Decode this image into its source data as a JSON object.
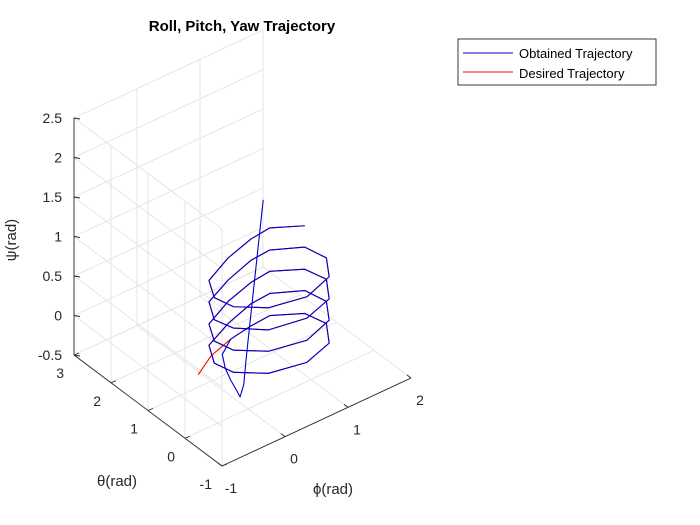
{
  "chart_data": {
    "type": "line3d",
    "title": "Roll, Pitch, Yaw Trajectory",
    "xlabel": "ϕ(rad)",
    "ylabel": "θ(rad)",
    "zlabel": "ψ(rad)",
    "xlim": [
      -1,
      2
    ],
    "ylim": [
      -1,
      3
    ],
    "zlim": [
      -0.5,
      2.5
    ],
    "xticks": [
      "-1",
      "0",
      "1",
      "2"
    ],
    "yticks": [
      "-1",
      "0",
      "1",
      "2",
      "3"
    ],
    "zticks": [
      "-0.5",
      "0",
      "0.5",
      "1",
      "1.5",
      "2",
      "2.5"
    ],
    "grid": true,
    "legend": "outside-top-right",
    "colors": {
      "obtained": "#0000cc",
      "desired": "#ff0000"
    },
    "series": [
      {
        "name": "Obtained Trajectory",
        "points": [
          [
            0.3,
            0.1,
            2.0
          ],
          [
            0.27,
            0.14,
            1.6
          ],
          [
            0.24,
            0.18,
            1.2
          ],
          [
            0.21,
            0.22,
            0.8
          ],
          [
            0.18,
            0.26,
            0.4
          ],
          [
            0.15,
            0.3,
            0.0
          ],
          [
            0.12,
            0.32,
            -0.35
          ],
          [
            0.08,
            0.35,
            -0.5
          ],
          [
            0.05,
            0.4,
            -0.42
          ],
          [
            0.02,
            0.5,
            -0.32
          ],
          [
            0.05,
            0.7,
            -0.25
          ],
          [
            0.15,
            0.95,
            -0.2
          ],
          [
            0.4,
            1.15,
            -0.17
          ],
          [
            0.75,
            1.2,
            -0.15
          ],
          [
            1.05,
            1.2,
            -0.13
          ],
          [
            1.4,
            0.85,
            -0.11
          ],
          [
            1.45,
            0.35,
            -0.08
          ],
          [
            1.2,
            -0.15,
            -0.06
          ],
          [
            0.7,
            -0.4,
            -0.03
          ],
          [
            0.15,
            -0.3,
            0.0
          ],
          [
            -0.2,
            0.05,
            0.02
          ],
          [
            -0.3,
            0.4,
            0.05
          ],
          [
            -0.15,
            0.8,
            0.08
          ],
          [
            0.3,
            1.05,
            0.1
          ],
          [
            0.75,
            1.2,
            0.13
          ],
          [
            1.05,
            1.2,
            0.15
          ],
          [
            1.4,
            0.85,
            0.18
          ],
          [
            1.45,
            0.35,
            0.2
          ],
          [
            1.2,
            -0.15,
            0.23
          ],
          [
            0.7,
            -0.4,
            0.25
          ],
          [
            0.15,
            -0.3,
            0.28
          ],
          [
            -0.2,
            0.05,
            0.3
          ],
          [
            -0.3,
            0.4,
            0.33
          ],
          [
            -0.15,
            0.8,
            0.35
          ],
          [
            0.3,
            1.05,
            0.38
          ],
          [
            0.75,
            1.2,
            0.4
          ],
          [
            1.05,
            1.2,
            0.43
          ],
          [
            1.4,
            0.85,
            0.45
          ],
          [
            1.45,
            0.35,
            0.48
          ],
          [
            1.2,
            -0.15,
            0.5
          ],
          [
            0.7,
            -0.4,
            0.53
          ],
          [
            0.15,
            -0.3,
            0.55
          ],
          [
            -0.2,
            0.05,
            0.58
          ],
          [
            -0.3,
            0.4,
            0.6
          ],
          [
            -0.15,
            0.8,
            0.63
          ],
          [
            0.3,
            1.05,
            0.65
          ],
          [
            0.75,
            1.2,
            0.68
          ],
          [
            1.05,
            1.2,
            0.7
          ],
          [
            1.4,
            0.85,
            0.73
          ],
          [
            1.45,
            0.35,
            0.75
          ],
          [
            1.2,
            -0.15,
            0.78
          ],
          [
            0.7,
            -0.4,
            0.8
          ],
          [
            0.15,
            -0.3,
            0.83
          ],
          [
            -0.2,
            0.05,
            0.85
          ],
          [
            -0.3,
            0.4,
            0.88
          ],
          [
            -0.15,
            0.8,
            0.9
          ],
          [
            0.3,
            1.05,
            0.93
          ],
          [
            0.75,
            1.2,
            0.95
          ],
          [
            1.05,
            1.2,
            0.98
          ],
          [
            1.4,
            0.85,
            1.0
          ]
        ]
      },
      {
        "name": "Desired Trajectory",
        "points": [
          [
            -0.35,
            0.75,
            -0.2
          ],
          [
            0.0,
            1.0,
            -0.18
          ],
          [
            0.4,
            1.15,
            -0.17
          ],
          [
            0.75,
            1.2,
            -0.15
          ],
          [
            1.05,
            1.2,
            -0.13
          ],
          [
            1.4,
            0.85,
            -0.11
          ],
          [
            1.45,
            0.35,
            -0.08
          ],
          [
            1.2,
            -0.15,
            -0.06
          ],
          [
            0.7,
            -0.4,
            -0.03
          ],
          [
            0.15,
            -0.3,
            0.0
          ],
          [
            -0.2,
            0.05,
            0.02
          ],
          [
            -0.3,
            0.4,
            0.05
          ],
          [
            -0.15,
            0.8,
            0.08
          ],
          [
            0.3,
            1.05,
            0.1
          ],
          [
            0.75,
            1.2,
            0.13
          ],
          [
            1.05,
            1.2,
            0.15
          ],
          [
            1.4,
            0.85,
            0.18
          ],
          [
            1.45,
            0.35,
            0.2
          ],
          [
            1.2,
            -0.15,
            0.23
          ],
          [
            0.7,
            -0.4,
            0.25
          ],
          [
            0.15,
            -0.3,
            0.28
          ],
          [
            -0.2,
            0.05,
            0.3
          ],
          [
            -0.3,
            0.4,
            0.33
          ],
          [
            -0.15,
            0.8,
            0.35
          ],
          [
            0.3,
            1.05,
            0.38
          ],
          [
            0.75,
            1.2,
            0.4
          ],
          [
            1.05,
            1.2,
            0.43
          ],
          [
            1.4,
            0.85,
            0.45
          ],
          [
            1.45,
            0.35,
            0.48
          ],
          [
            1.2,
            -0.15,
            0.5
          ],
          [
            0.7,
            -0.4,
            0.53
          ],
          [
            0.15,
            -0.3,
            0.55
          ],
          [
            -0.2,
            0.05,
            0.58
          ],
          [
            -0.3,
            0.4,
            0.6
          ],
          [
            -0.15,
            0.8,
            0.63
          ],
          [
            0.3,
            1.05,
            0.65
          ],
          [
            0.75,
            1.2,
            0.68
          ],
          [
            1.05,
            1.2,
            0.7
          ],
          [
            1.4,
            0.85,
            0.73
          ],
          [
            1.45,
            0.35,
            0.75
          ],
          [
            1.2,
            -0.15,
            0.78
          ],
          [
            0.7,
            -0.4,
            0.8
          ],
          [
            0.15,
            -0.3,
            0.83
          ],
          [
            -0.2,
            0.05,
            0.85
          ],
          [
            -0.3,
            0.4,
            0.88
          ],
          [
            -0.15,
            0.8,
            0.9
          ],
          [
            0.3,
            1.05,
            0.93
          ],
          [
            0.75,
            1.2,
            0.95
          ],
          [
            1.05,
            1.2,
            0.98
          ],
          [
            1.4,
            0.85,
            1.0
          ]
        ]
      }
    ]
  }
}
